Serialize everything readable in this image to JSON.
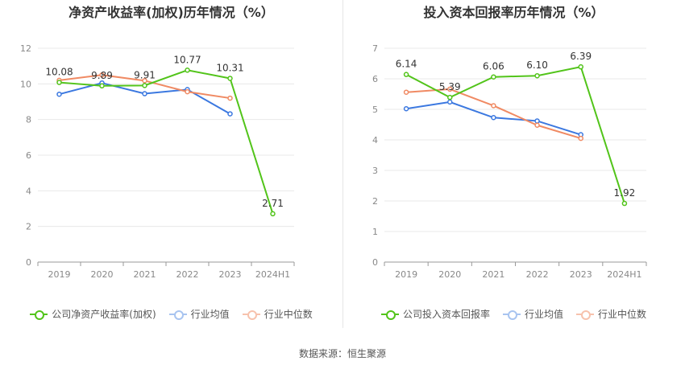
{
  "source": "数据来源：恒生聚源",
  "chart_data": [
    {
      "type": "line",
      "title": "净资产收益率(加权)历年情况（%）",
      "categories": [
        "2019",
        "2020",
        "2021",
        "2022",
        "2023",
        "2024H1"
      ],
      "ylim": [
        0,
        12
      ],
      "yticks": [
        0,
        2,
        4,
        6,
        8,
        10,
        12
      ],
      "grid": true,
      "legend_position": "bottom",
      "series": [
        {
          "name": "公司净资产收益率(加权)",
          "color": "#52c41a",
          "values": [
            10.08,
            9.89,
            9.91,
            10.77,
            10.31,
            2.71
          ],
          "labels": [
            "10.08",
            "9.89",
            "9.91",
            "10.77",
            "10.31",
            "2.71"
          ]
        },
        {
          "name": "行业均值",
          "color": "#3b78e0",
          "values": [
            9.42,
            10.05,
            9.45,
            9.68,
            8.32,
            null
          ]
        },
        {
          "name": "行业中位数",
          "color": "#f08a63",
          "values": [
            10.2,
            10.5,
            10.18,
            9.56,
            9.2,
            null
          ]
        }
      ]
    },
    {
      "type": "line",
      "title": "投入资本回报率历年情况（%）",
      "categories": [
        "2019",
        "2020",
        "2021",
        "2022",
        "2023",
        "2024H1"
      ],
      "ylim": [
        0,
        7
      ],
      "yticks": [
        0,
        1,
        2,
        3,
        4,
        5,
        6,
        7
      ],
      "grid": true,
      "legend_position": "bottom",
      "series": [
        {
          "name": "公司投入资本回报率",
          "color": "#52c41a",
          "values": [
            6.14,
            5.39,
            6.06,
            6.1,
            6.39,
            1.92
          ],
          "labels": [
            "6.14",
            "5.39",
            "6.06",
            "6.10",
            "6.39",
            "1.92"
          ]
        },
        {
          "name": "行业均值",
          "color": "#3b78e0",
          "values": [
            5.02,
            5.24,
            4.73,
            4.62,
            4.17,
            null
          ]
        },
        {
          "name": "行业中位数",
          "color": "#f08a63",
          "values": [
            5.56,
            5.66,
            5.12,
            4.48,
            4.05,
            null
          ]
        }
      ]
    }
  ]
}
